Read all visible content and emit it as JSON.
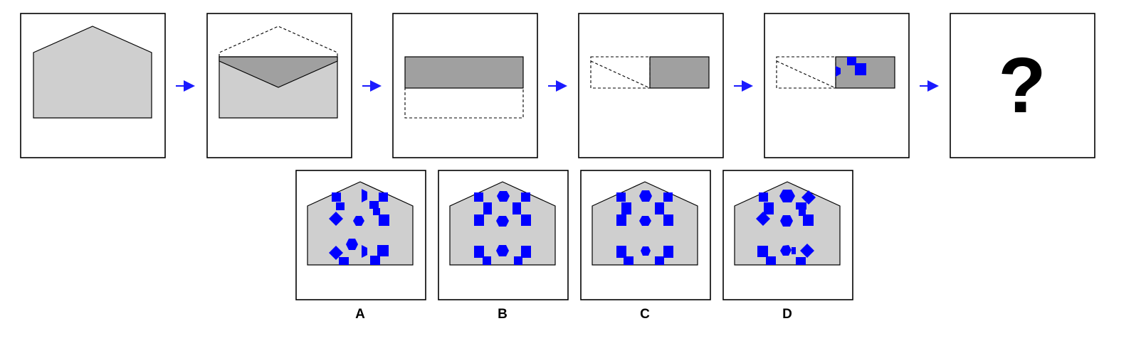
{
  "question_mark": "?",
  "arrow_color": "#1a1aff",
  "shape_color": "#0000ff",
  "paper_color": "#cfcfcf",
  "fold_color": "#a0a0a0",
  "options": [
    {
      "label": "A"
    },
    {
      "label": "B"
    },
    {
      "label": "C"
    },
    {
      "label": "D"
    }
  ]
}
